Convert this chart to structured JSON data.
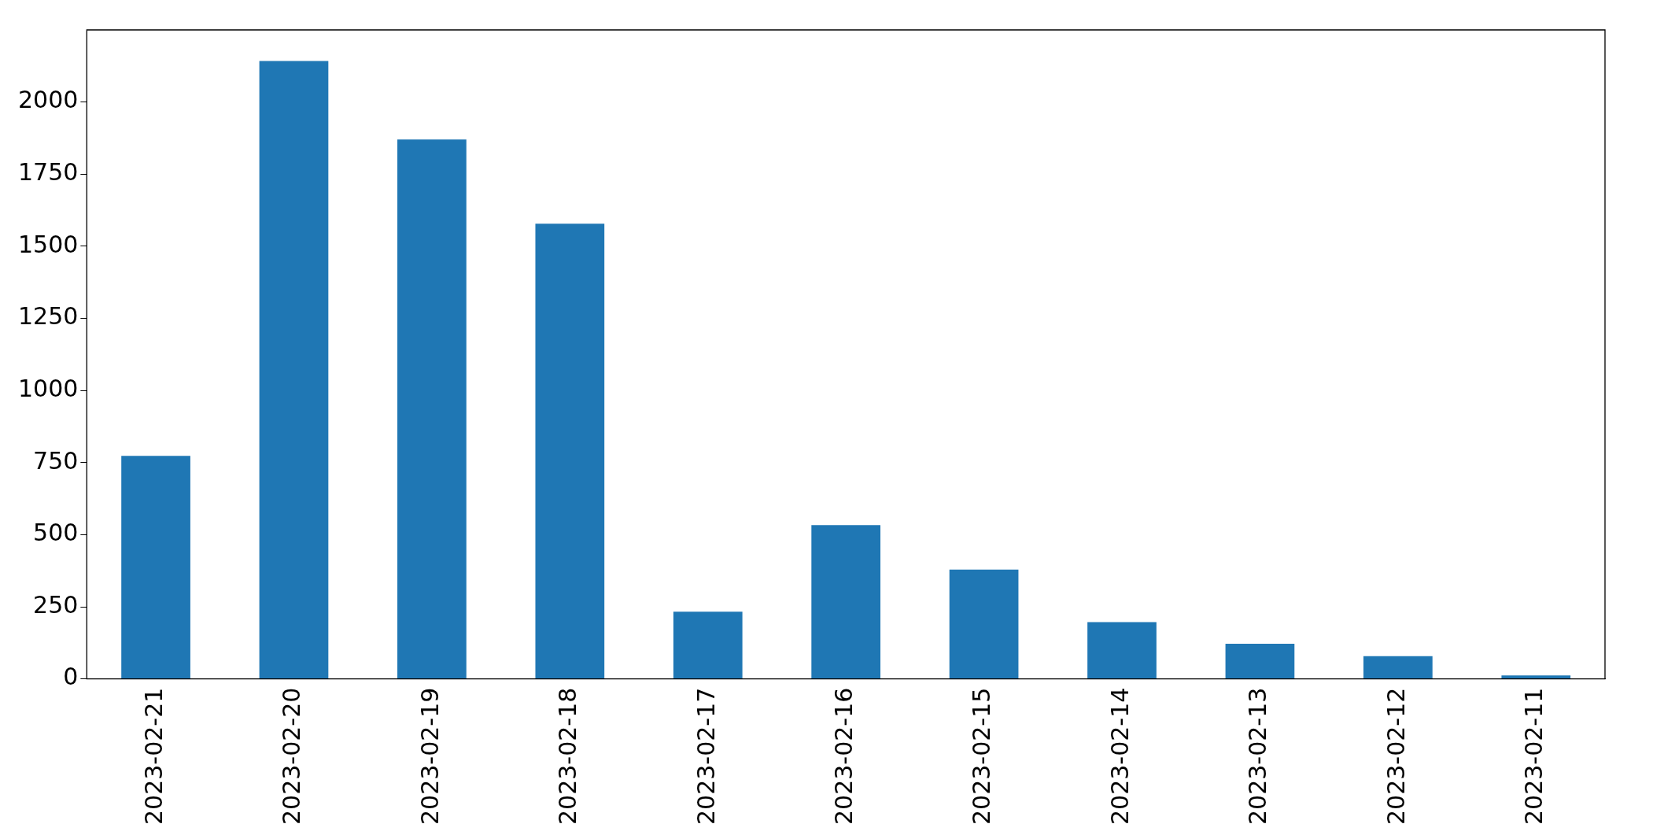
{
  "chart_data": {
    "type": "bar",
    "categories": [
      "2023-02-21",
      "2023-02-20",
      "2023-02-19",
      "2023-02-18",
      "2023-02-17",
      "2023-02-16",
      "2023-02-15",
      "2023-02-14",
      "2023-02-13",
      "2023-02-12",
      "2023-02-11"
    ],
    "values": [
      773,
      2142,
      1870,
      1578,
      233,
      533,
      379,
      197,
      122,
      79,
      12
    ],
    "color": "#1f77b4",
    "ylim": [
      0,
      2250
    ],
    "yticks": [
      0,
      250,
      500,
      750,
      1000,
      1250,
      1500,
      1750,
      2000
    ],
    "grid": false,
    "legend": false
  }
}
